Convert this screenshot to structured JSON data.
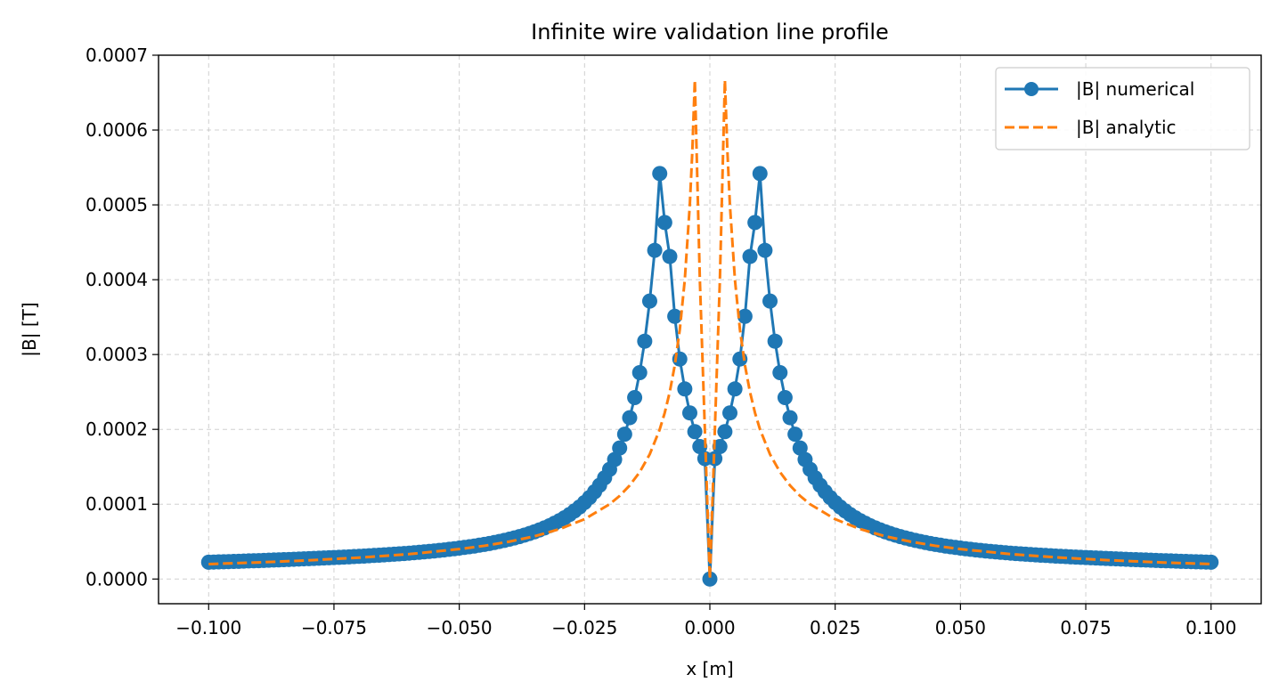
{
  "chart_data": {
    "type": "line",
    "title": "Infinite wire validation line profile",
    "xlabel": "x [m]",
    "ylabel": "|B| [T]",
    "xlim": [
      -0.11,
      0.11
    ],
    "ylim": [
      -3.3e-05,
      0.0007
    ],
    "xticks": [
      -0.1,
      -0.075,
      -0.05,
      -0.025,
      0.0,
      0.025,
      0.05,
      0.075,
      0.1
    ],
    "xtick_labels": [
      "−0.100",
      "−0.075",
      "−0.050",
      "−0.025",
      "0.000",
      "0.025",
      "0.050",
      "0.075",
      "0.100"
    ],
    "yticks": [
      0.0,
      0.0001,
      0.0002,
      0.0003,
      0.0004,
      0.0005,
      0.0006,
      0.0007
    ],
    "ytick_labels": [
      "0.0000",
      "0.0001",
      "0.0002",
      "0.0003",
      "0.0004",
      "0.0005",
      "0.0006",
      "0.0007"
    ],
    "grid": true,
    "legend_position": "top-right",
    "series": [
      {
        "name": "|B| numerical",
        "style": "solid-with-circle-markers",
        "color": "#1f77b4",
        "x": [
          -0.1,
          -0.099,
          -0.098,
          -0.097,
          -0.096,
          -0.095,
          -0.094,
          -0.093,
          -0.092,
          -0.091,
          -0.09,
          -0.089,
          -0.088,
          -0.087,
          -0.086,
          -0.085,
          -0.084,
          -0.083,
          -0.082,
          -0.081,
          -0.08,
          -0.079,
          -0.078,
          -0.077,
          -0.076,
          -0.075,
          -0.074,
          -0.073,
          -0.072,
          -0.071,
          -0.07,
          -0.069,
          -0.068,
          -0.067,
          -0.066,
          -0.065,
          -0.064,
          -0.063,
          -0.062,
          -0.061,
          -0.06,
          -0.059,
          -0.058,
          -0.057,
          -0.056,
          -0.055,
          -0.054,
          -0.053,
          -0.052,
          -0.051,
          -0.05,
          -0.049,
          -0.048,
          -0.047,
          -0.046,
          -0.045,
          -0.044,
          -0.043,
          -0.042,
          -0.041,
          -0.04,
          -0.039,
          -0.038,
          -0.037,
          -0.036,
          -0.035,
          -0.034,
          -0.033,
          -0.032,
          -0.031,
          -0.03,
          -0.029,
          -0.028,
          -0.027,
          -0.026,
          -0.025,
          -0.024,
          -0.023,
          -0.022,
          -0.021,
          -0.02,
          -0.019,
          -0.018,
          -0.017,
          -0.016,
          -0.015,
          -0.014,
          -0.013,
          -0.012,
          -0.011,
          -0.01,
          -0.009,
          -0.008,
          -0.007,
          -0.006,
          -0.005,
          -0.004,
          -0.003,
          -0.002,
          -0.001,
          0.0,
          0.001,
          0.002,
          0.003,
          0.004,
          0.005,
          0.006,
          0.007,
          0.008,
          0.009,
          0.01,
          0.011,
          0.012,
          0.013,
          0.014,
          0.015,
          0.016,
          0.017,
          0.018,
          0.019,
          0.02,
          0.021,
          0.022,
          0.023,
          0.024,
          0.025,
          0.026,
          0.027,
          0.028,
          0.029,
          0.03,
          0.031,
          0.032,
          0.033,
          0.034,
          0.035,
          0.036,
          0.037,
          0.038,
          0.039,
          0.04,
          0.041,
          0.042,
          0.043,
          0.044,
          0.045,
          0.046,
          0.047,
          0.048,
          0.049,
          0.05,
          0.051,
          0.052,
          0.053,
          0.054,
          0.055,
          0.056,
          0.057,
          0.058,
          0.059,
          0.06,
          0.061,
          0.062,
          0.063,
          0.064,
          0.065,
          0.066,
          0.067,
          0.068,
          0.069,
          0.07,
          0.071,
          0.072,
          0.073,
          0.074,
          0.075,
          0.076,
          0.077,
          0.078,
          0.079,
          0.08,
          0.081,
          0.082,
          0.083,
          0.084,
          0.085,
          0.086,
          0.087,
          0.088,
          0.089,
          0.09,
          0.091,
          0.092,
          0.093,
          0.094,
          0.095,
          0.096,
          0.097,
          0.098,
          0.099,
          0.1
        ],
        "y": [
          2.25e-05,
          2.27e-05,
          2.29e-05,
          2.31e-05,
          2.33e-05,
          2.35e-05,
          2.37e-05,
          2.39e-05,
          2.42e-05,
          2.44e-05,
          2.46e-05,
          2.49e-05,
          2.51e-05,
          2.54e-05,
          2.56e-05,
          2.59e-05,
          2.61e-05,
          2.64e-05,
          2.67e-05,
          2.7e-05,
          2.72e-05,
          2.75e-05,
          2.78e-05,
          2.81e-05,
          2.84e-05,
          2.87e-05,
          2.9e-05,
          2.93e-05,
          2.96e-05,
          3e-05,
          3.03e-05,
          3.07e-05,
          3.11e-05,
          3.15e-05,
          3.19e-05,
          3.23e-05,
          3.27e-05,
          3.32e-05,
          3.36e-05,
          3.41e-05,
          3.46e-05,
          3.52e-05,
          3.57e-05,
          3.63e-05,
          3.69e-05,
          3.75e-05,
          3.82e-05,
          3.89e-05,
          3.97e-05,
          4.05e-05,
          4.13e-05,
          4.22e-05,
          4.31e-05,
          4.41e-05,
          4.52e-05,
          4.63e-05,
          4.75e-05,
          4.88e-05,
          5.02e-05,
          5.16e-05,
          5.32e-05,
          5.49e-05,
          5.67e-05,
          5.87e-05,
          6.08e-05,
          6.31e-05,
          6.56e-05,
          6.83e-05,
          7.12e-05,
          7.45e-05,
          7.8e-05,
          8.19e-05,
          8.62e-05,
          9.1e-05,
          9.63e-05,
          0.0001023,
          0.000109,
          0.0001166,
          0.0001253,
          0.0001352,
          0.0001465,
          0.0001597,
          0.0001751,
          0.0001935,
          0.0002156,
          0.0002425,
          0.0002758,
          0.0003178,
          0.0003714,
          0.0004392,
          0.0005419,
          0.0004764,
          0.000431,
          0.000351,
          0.000294,
          0.000254,
          0.000222,
          0.000197,
          0.000177,
          0.000161,
          0.0,
          0.000161,
          0.000177,
          0.000197,
          0.000222,
          0.000254,
          0.000294,
          0.000351,
          0.000431,
          0.0004764,
          0.0005419,
          0.0004392,
          0.0003714,
          0.0003178,
          0.0002758,
          0.0002425,
          0.0002156,
          0.0001935,
          0.0001751,
          0.0001597,
          0.0001465,
          0.0001352,
          0.0001253,
          0.0001166,
          0.000109,
          0.0001023,
          9.63e-05,
          9.1e-05,
          8.62e-05,
          8.19e-05,
          7.8e-05,
          7.45e-05,
          7.12e-05,
          6.83e-05,
          6.56e-05,
          6.31e-05,
          6.08e-05,
          5.87e-05,
          5.67e-05,
          5.49e-05,
          5.32e-05,
          5.16e-05,
          5.02e-05,
          4.88e-05,
          4.75e-05,
          4.63e-05,
          4.52e-05,
          4.41e-05,
          4.31e-05,
          4.22e-05,
          4.13e-05,
          4.05e-05,
          3.97e-05,
          3.89e-05,
          3.82e-05,
          3.75e-05,
          3.69e-05,
          3.63e-05,
          3.57e-05,
          3.52e-05,
          3.46e-05,
          3.41e-05,
          3.36e-05,
          3.32e-05,
          3.27e-05,
          3.23e-05,
          3.19e-05,
          3.15e-05,
          3.11e-05,
          3.07e-05,
          3.03e-05,
          3e-05,
          2.96e-05,
          2.93e-05,
          2.9e-05,
          2.87e-05,
          2.84e-05,
          2.81e-05,
          2.78e-05,
          2.75e-05,
          2.72e-05,
          2.7e-05,
          2.67e-05,
          2.64e-05,
          2.61e-05,
          2.59e-05,
          2.56e-05,
          2.54e-05,
          2.51e-05,
          2.49e-05,
          2.46e-05,
          2.44e-05,
          2.42e-05,
          2.39e-05,
          2.37e-05,
          2.35e-05,
          2.33e-05,
          2.31e-05,
          2.29e-05,
          2.27e-05,
          2.25e-05
        ]
      },
      {
        "name": "|B| analytic",
        "style": "dashed",
        "color": "#ff7f0e",
        "x": [
          -0.1,
          -0.09,
          -0.08,
          -0.07,
          -0.06,
          -0.05,
          -0.045,
          -0.04,
          -0.035,
          -0.03,
          -0.025,
          -0.02,
          -0.018,
          -0.016,
          -0.014,
          -0.012,
          -0.01,
          -0.009,
          -0.008,
          -0.007,
          -0.006,
          -0.005,
          -0.004,
          -0.0035,
          -0.003,
          -0.0025,
          -0.002,
          -0.0015,
          -0.001,
          -0.0005,
          0.0,
          0.0005,
          0.001,
          0.0015,
          0.002,
          0.0025,
          0.003,
          0.0035,
          0.004,
          0.005,
          0.006,
          0.007,
          0.008,
          0.009,
          0.01,
          0.012,
          0.014,
          0.016,
          0.018,
          0.02,
          0.025,
          0.03,
          0.035,
          0.04,
          0.045,
          0.05,
          0.06,
          0.07,
          0.08,
          0.09,
          0.1
        ],
        "y": [
          2e-05,
          2.22e-05,
          2.5e-05,
          2.86e-05,
          3.33e-05,
          4e-05,
          4.44e-05,
          5e-05,
          5.71e-05,
          6.67e-05,
          8e-05,
          0.0001,
          0.0001111,
          0.000125,
          0.0001429,
          0.0001667,
          0.0002,
          0.0002222,
          0.00025,
          0.0002857,
          0.0003333,
          0.0004,
          0.0005,
          0.0005714,
          0.0006667,
          0.0005333,
          0.0004,
          0.0003,
          0.0002,
          0.0001,
          0.0,
          0.0001,
          0.0002,
          0.0003,
          0.0004,
          0.0005333,
          0.0006667,
          0.0005714,
          0.0005,
          0.0004,
          0.0003333,
          0.0002857,
          0.00025,
          0.0002222,
          0.0002,
          0.0001667,
          0.0001429,
          0.000125,
          0.0001111,
          0.0001,
          8e-05,
          6.67e-05,
          5.71e-05,
          5e-05,
          4.44e-05,
          4e-05,
          3.33e-05,
          2.86e-05,
          2.5e-05,
          2.22e-05,
          2e-05
        ]
      }
    ]
  }
}
